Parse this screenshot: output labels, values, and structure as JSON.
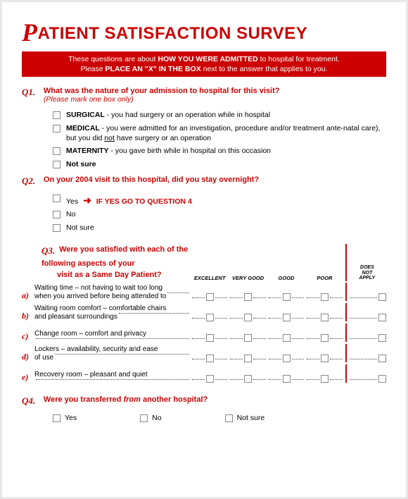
{
  "survey": {
    "title_prefix": "P",
    "title_rest": "ATIENT SATISFACTION SURVEY",
    "banner_line1a": "These questions are about ",
    "banner_line1b": "HOW YOU WERE ADMITTED",
    "banner_line1c": " to hospital for treatment.",
    "banner_line2a": "Please ",
    "banner_line2b": "PLACE AN \"X\" IN THE BOX",
    "banner_line2c": " next to the answer that applies to you."
  },
  "q1": {
    "num": "Q1.",
    "text": "What was the nature of your admission to hospital for this visit?",
    "hint": "(Please mark one box only)",
    "opts": [
      {
        "bold": "SURGICAL",
        "rest": " - you had surgery or an operation while in hospital"
      },
      {
        "bold": "MEDICAL",
        "rest": " - you were admitted for an investigation, procedure and/or treatment ante-natal care), but you did ",
        "u": "not",
        "rest2": " have surgery or an operation"
      },
      {
        "bold": "MATERNITY",
        "rest": " - you gave birth while in hospital on this occasion"
      },
      {
        "bold": "Not sure",
        "rest": ""
      }
    ]
  },
  "q2": {
    "num": "Q2.",
    "text": "On your 2004 visit to this hospital, did you stay overnight?",
    "yes": "Yes",
    "skip": "IF YES GO TO QUESTION 4",
    "no": "No",
    "notsure": "Not sure"
  },
  "q3": {
    "num": "Q3.",
    "text1": "Were you satisfied with each of the following aspects of your",
    "text2": "visit as a Same Day Patient?",
    "cols": [
      "EXCELLENT",
      "VERY GOOD",
      "GOOD",
      "POOR"
    ],
    "dna1": "DOES",
    "dna2": "NOT",
    "dna3": "APPLY",
    "rows": [
      {
        "letter": "a)",
        "line1": "Waiting time – not having to wait too long",
        "line2": "when you arrived before being attended to"
      },
      {
        "letter": "b)",
        "line1": "Waiting room comfort – comfortable chairs",
        "line2": "and pleasant surroundings"
      },
      {
        "letter": "c)",
        "line1": "Change room – comfort and privacy",
        "line2": ""
      },
      {
        "letter": "d)",
        "line1": "Lockers – availability, security and ease",
        "line2": "of use"
      },
      {
        "letter": "e)",
        "line1": "Recovery room – pleasant and quiet",
        "line2": ""
      }
    ]
  },
  "q4": {
    "num": "Q4.",
    "text_a": "Were you transferred ",
    "text_i": "from",
    "text_b": " another hospital?",
    "opts": [
      "Yes",
      "No",
      "Not sure"
    ]
  },
  "colors": {
    "red": "#cc0000",
    "box_border": "#888888",
    "text": "#000000",
    "bg": "#ffffff"
  }
}
